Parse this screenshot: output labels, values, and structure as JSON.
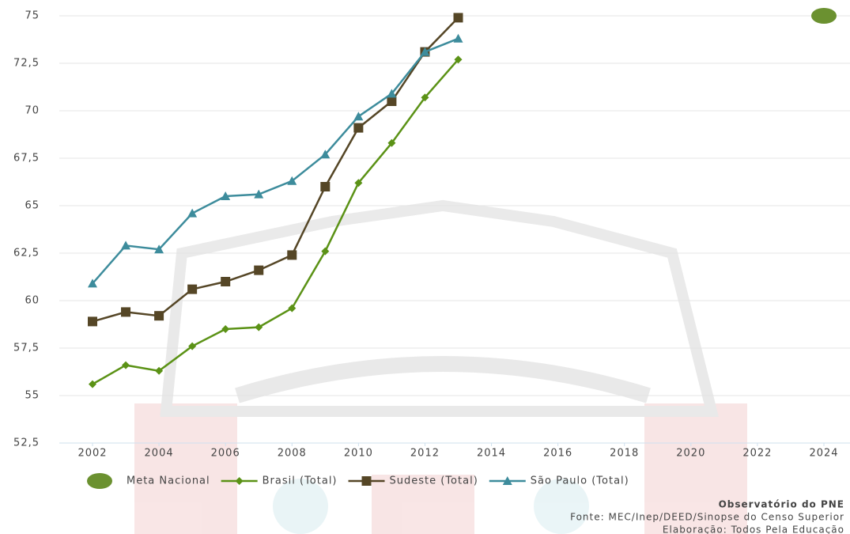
{
  "chart_data": {
    "type": "line",
    "xlim": [
      2001,
      2025
    ],
    "xticks": [
      2002,
      2004,
      2006,
      2008,
      2010,
      2012,
      2014,
      2016,
      2018,
      2020,
      2022,
      2024
    ],
    "ylim": [
      52.5,
      75
    ],
    "yticks": [
      {
        "value": 52.5,
        "label": "52,5"
      },
      55,
      {
        "value": 57.5,
        "label": "57,5"
      },
      60,
      {
        "value": 62.5,
        "label": "62,5"
      },
      65,
      {
        "value": 67.5,
        "label": "67,5"
      },
      70,
      {
        "value": 72.5,
        "label": "72,5"
      },
      75
    ],
    "grid": true,
    "legend": "bottom",
    "series": [
      {
        "name": "Meta Nacional",
        "color": "#6b9130",
        "marker": "ellipse",
        "x": [
          2024
        ],
        "values": [
          75
        ]
      },
      {
        "name": "Brasil (Total)",
        "color": "#5b9216",
        "marker": "diamond",
        "x": [
          2002,
          2003,
          2004,
          2005,
          2006,
          2007,
          2008,
          2009,
          2010,
          2011,
          2012,
          2013
        ],
        "values": [
          55.6,
          56.6,
          56.3,
          57.6,
          58.5,
          58.6,
          59.6,
          62.6,
          66.2,
          68.3,
          70.7,
          72.7
        ]
      },
      {
        "name": "Sudeste (Total)",
        "color": "#554626",
        "marker": "square",
        "x": [
          2002,
          2003,
          2004,
          2005,
          2006,
          2007,
          2008,
          2009,
          2010,
          2011,
          2012,
          2013
        ],
        "values": [
          58.9,
          59.4,
          59.2,
          60.6,
          61.0,
          61.6,
          62.4,
          66.0,
          69.1,
          70.5,
          73.1,
          74.9
        ]
      },
      {
        "name": "São Paulo (Total)",
        "color": "#3d8c9c",
        "marker": "triangle",
        "x": [
          2002,
          2003,
          2004,
          2005,
          2006,
          2007,
          2008,
          2009,
          2010,
          2011,
          2012,
          2013
        ],
        "values": [
          60.9,
          62.9,
          62.7,
          64.6,
          65.5,
          65.6,
          66.3,
          67.7,
          69.7,
          70.9,
          73.1,
          73.8
        ]
      }
    ],
    "notes": [
      "Observatório do PNE",
      "Fonte: MEC/Inep/DEED/Sinopse do Censo Superior",
      "Elaboração: Todos Pela Educação"
    ]
  }
}
